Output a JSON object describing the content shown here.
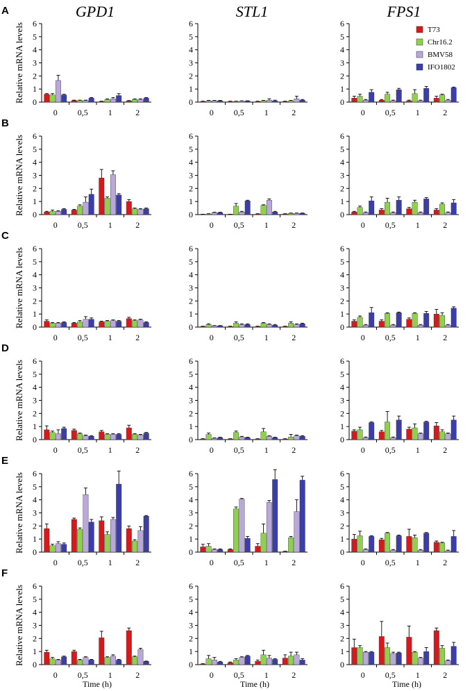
{
  "gene_titles": [
    "GPD1",
    "STL1",
    "FPS1"
  ],
  "row_labels": [
    "A",
    "B",
    "C",
    "D",
    "E",
    "F"
  ],
  "colors": {
    "T73": "#d7191c",
    "Chr16.2": "#8fd14f",
    "BMV58": "#b8a9d9",
    "IFO1802": "#3b3ea8"
  },
  "chart_data": {
    "type": "bar",
    "categories": [
      "0",
      "0,5",
      "1",
      "2"
    ],
    "series_names": [
      "T73",
      "Chr16.2",
      "BMV58",
      "IFO1802"
    ],
    "ylabel": "Relative mRNA levels",
    "xlabel": "Time (h)",
    "ylim": [
      0,
      6
    ],
    "yticks": [
      "0",
      "1",
      "2",
      "3",
      "4",
      "5",
      "6"
    ],
    "legend": {
      "entries": [
        "T73",
        "Chr16.2",
        "BMV58",
        "IFO1802"
      ],
      "placement": "top-right"
    },
    "panels": [
      {
        "row": "A",
        "gene": "GPD1",
        "values": [
          [
            0.6,
            0.55,
            1.65,
            0.55
          ],
          [
            0.12,
            0.12,
            0.12,
            0.3
          ],
          [
            0.05,
            0.2,
            0.25,
            0.5
          ],
          [
            0.1,
            0.2,
            0.2,
            0.3
          ]
        ],
        "errors": [
          [
            0.05,
            0.1,
            0.4,
            0.05
          ],
          [
            0.03,
            0.03,
            0.03,
            0.05
          ],
          [
            0.02,
            0.05,
            0.1,
            0.15
          ],
          [
            0.02,
            0.05,
            0.05,
            0.05
          ]
        ]
      },
      {
        "row": "A",
        "gene": "STL1",
        "values": [
          [
            0.05,
            0.1,
            0.1,
            0.1
          ],
          [
            0.05,
            0.05,
            0.08,
            0.08
          ],
          [
            0.05,
            0.1,
            0.15,
            0.1
          ],
          [
            0.05,
            0.1,
            0.25,
            0.15
          ]
        ],
        "errors": [
          [
            0.02,
            0.03,
            0.03,
            0.03
          ],
          [
            0.02,
            0.02,
            0.02,
            0.02
          ],
          [
            0.02,
            0.03,
            0.1,
            0.05
          ],
          [
            0.02,
            0.03,
            0.2,
            0.05
          ]
        ]
      },
      {
        "row": "A",
        "gene": "FPS1",
        "values": [
          [
            0.3,
            0.45,
            0.15,
            0.75
          ],
          [
            0.15,
            0.6,
            0.1,
            0.95
          ],
          [
            0.1,
            0.65,
            0.1,
            1.05
          ],
          [
            0.3,
            0.55,
            0.15,
            1.1
          ]
        ],
        "errors": [
          [
            0.15,
            0.15,
            0.05,
            0.2
          ],
          [
            0.05,
            0.15,
            0.05,
            0.1
          ],
          [
            0.05,
            0.3,
            0.05,
            0.15
          ],
          [
            0.15,
            0.05,
            0.05,
            0.05
          ]
        ]
      },
      {
        "row": "B",
        "gene": "GPD1",
        "values": [
          [
            0.2,
            0.25,
            0.25,
            0.4
          ],
          [
            0.35,
            0.65,
            0.95,
            1.55
          ],
          [
            2.8,
            1.25,
            3.05,
            1.5
          ],
          [
            1.0,
            0.45,
            0.4,
            0.45
          ]
        ],
        "errors": [
          [
            0.05,
            0.1,
            0.05,
            0.05
          ],
          [
            0.05,
            0.1,
            0.4,
            0.4
          ],
          [
            0.65,
            0.1,
            0.3,
            0.1
          ],
          [
            0.15,
            0.05,
            0.05,
            0.05
          ]
        ]
      },
      {
        "row": "B",
        "gene": "STL1",
        "values": [
          [
            0.02,
            0.05,
            0.15,
            0.15
          ],
          [
            0.02,
            0.65,
            0.2,
            1.05
          ],
          [
            0.05,
            0.7,
            1.1,
            0.2
          ],
          [
            0.05,
            0.1,
            0.1,
            0.1
          ]
        ],
        "errors": [
          [
            0.01,
            0.02,
            0.03,
            0.03
          ],
          [
            0.01,
            0.2,
            0.05,
            0.05
          ],
          [
            0.02,
            0.05,
            0.1,
            0.05
          ],
          [
            0.02,
            0.02,
            0.02,
            0.02
          ]
        ]
      },
      {
        "row": "B",
        "gene": "FPS1",
        "values": [
          [
            0.2,
            0.55,
            0.15,
            1.05
          ],
          [
            0.35,
            0.95,
            0.15,
            1.1
          ],
          [
            0.45,
            0.95,
            0.15,
            1.2
          ],
          [
            0.35,
            0.8,
            0.15,
            0.9
          ]
        ],
        "errors": [
          [
            0.05,
            0.1,
            0.05,
            0.3
          ],
          [
            0.1,
            0.3,
            0.05,
            0.25
          ],
          [
            0.1,
            0.15,
            0.05,
            0.1
          ],
          [
            0.1,
            0.1,
            0.05,
            0.25
          ]
        ]
      },
      {
        "row": "C",
        "gene": "GPD1",
        "values": [
          [
            0.45,
            0.3,
            0.3,
            0.35
          ],
          [
            0.3,
            0.4,
            0.6,
            0.6
          ],
          [
            0.4,
            0.45,
            0.5,
            0.45
          ],
          [
            0.65,
            0.5,
            0.55,
            0.35
          ]
        ],
        "errors": [
          [
            0.1,
            0.05,
            0.05,
            0.05
          ],
          [
            0.05,
            0.1,
            0.2,
            0.1
          ],
          [
            0.05,
            0.05,
            0.05,
            0.05
          ],
          [
            0.1,
            0.05,
            0.05,
            0.05
          ]
        ]
      },
      {
        "row": "C",
        "gene": "STL1",
        "values": [
          [
            0.05,
            0.2,
            0.1,
            0.1
          ],
          [
            0.05,
            0.3,
            0.2,
            0.2
          ],
          [
            0.05,
            0.3,
            0.2,
            0.15
          ],
          [
            0.05,
            0.3,
            0.2,
            0.25
          ]
        ],
        "errors": [
          [
            0.02,
            0.05,
            0.02,
            0.02
          ],
          [
            0.02,
            0.1,
            0.05,
            0.05
          ],
          [
            0.02,
            0.05,
            0.05,
            0.05
          ],
          [
            0.02,
            0.1,
            0.05,
            0.05
          ]
        ]
      },
      {
        "row": "C",
        "gene": "FPS1",
        "values": [
          [
            0.45,
            0.75,
            0.15,
            1.1
          ],
          [
            0.45,
            1.05,
            0.15,
            1.1
          ],
          [
            0.6,
            1.05,
            0.15,
            1.05
          ],
          [
            1.0,
            0.9,
            0.15,
            1.45
          ]
        ],
        "errors": [
          [
            0.1,
            0.1,
            0.05,
            0.4
          ],
          [
            0.1,
            0.05,
            0.05,
            0.05
          ],
          [
            0.1,
            0.05,
            0.05,
            0.15
          ],
          [
            0.35,
            0.2,
            0.05,
            0.1
          ]
        ]
      },
      {
        "row": "D",
        "gene": "GPD1",
        "values": [
          [
            0.75,
            0.55,
            0.45,
            0.85
          ],
          [
            0.7,
            0.45,
            0.3,
            0.25
          ],
          [
            0.6,
            0.4,
            0.4,
            0.4
          ],
          [
            0.9,
            0.4,
            0.35,
            0.5
          ]
        ],
        "errors": [
          [
            0.3,
            0.1,
            0.3,
            0.1
          ],
          [
            0.1,
            0.05,
            0.05,
            0.05
          ],
          [
            0.1,
            0.05,
            0.05,
            0.05
          ],
          [
            0.2,
            0.05,
            0.05,
            0.05
          ]
        ]
      },
      {
        "row": "D",
        "gene": "STL1",
        "values": [
          [
            0.05,
            0.4,
            0.1,
            0.15
          ],
          [
            0.05,
            0.55,
            0.2,
            0.15
          ],
          [
            0.05,
            0.6,
            0.25,
            0.15
          ],
          [
            0.05,
            0.2,
            0.3,
            0.25
          ]
        ],
        "errors": [
          [
            0.02,
            0.1,
            0.03,
            0.03
          ],
          [
            0.02,
            0.1,
            0.05,
            0.03
          ],
          [
            0.02,
            0.25,
            0.05,
            0.03
          ],
          [
            0.02,
            0.2,
            0.05,
            0.05
          ]
        ]
      },
      {
        "row": "D",
        "gene": "FPS1",
        "values": [
          [
            0.65,
            0.75,
            0.15,
            1.3
          ],
          [
            0.6,
            1.35,
            0.15,
            1.5
          ],
          [
            0.8,
            0.9,
            0.45,
            1.35
          ],
          [
            1.05,
            0.6,
            0.45,
            1.5
          ]
        ],
        "errors": [
          [
            0.1,
            0.2,
            0.05,
            0.05
          ],
          [
            0.1,
            0.8,
            0.05,
            0.3
          ],
          [
            0.15,
            0.3,
            0.05,
            0.05
          ],
          [
            0.25,
            0.15,
            0.05,
            0.3
          ]
        ]
      },
      {
        "row": "E",
        "gene": "GPD1",
        "values": [
          [
            1.8,
            0.5,
            0.65,
            0.6
          ],
          [
            2.5,
            1.75,
            4.4,
            2.3
          ],
          [
            2.4,
            1.35,
            2.5,
            5.2
          ],
          [
            1.8,
            0.85,
            1.65,
            2.75
          ]
        ],
        "errors": [
          [
            0.35,
            0.1,
            0.15,
            0.1
          ],
          [
            0.1,
            0.1,
            0.5,
            0.2
          ],
          [
            0.3,
            0.2,
            0.15,
            1.0
          ],
          [
            0.2,
            0.1,
            0.3,
            0.05
          ]
        ]
      },
      {
        "row": "E",
        "gene": "STL1",
        "values": [
          [
            0.4,
            0.45,
            0.2,
            0.2
          ],
          [
            0.2,
            3.3,
            4.05,
            1.05
          ],
          [
            0.45,
            1.45,
            3.8,
            5.55
          ],
          [
            0.05,
            1.1,
            3.1,
            5.5
          ]
        ],
        "errors": [
          [
            0.2,
            0.2,
            0.05,
            0.05
          ],
          [
            0.05,
            0.15,
            0.05,
            0.15
          ],
          [
            0.2,
            0.7,
            0.15,
            0.75
          ],
          [
            0.02,
            0.1,
            0.9,
            0.3
          ]
        ]
      },
      {
        "row": "E",
        "gene": "FPS1",
        "values": [
          [
            1.0,
            1.25,
            0.2,
            1.2
          ],
          [
            0.95,
            1.45,
            0.15,
            1.25
          ],
          [
            1.2,
            1.1,
            0.15,
            1.45
          ],
          [
            0.75,
            0.7,
            0.1,
            1.2
          ]
        ],
        "errors": [
          [
            0.35,
            0.35,
            0.05,
            0.05
          ],
          [
            0.1,
            0.05,
            0.05,
            0.05
          ],
          [
            0.55,
            0.2,
            0.05,
            0.05
          ],
          [
            0.1,
            0.05,
            0.05,
            0.45
          ]
        ]
      },
      {
        "row": "F",
        "gene": "GPD1",
        "values": [
          [
            0.95,
            0.45,
            0.35,
            0.6
          ],
          [
            1.0,
            0.35,
            0.55,
            0.35
          ],
          [
            2.05,
            0.55,
            0.65,
            0.35
          ],
          [
            2.6,
            0.6,
            1.15,
            0.25
          ]
        ],
        "errors": [
          [
            0.15,
            0.1,
            0.05,
            0.05
          ],
          [
            0.1,
            0.05,
            0.05,
            0.05
          ],
          [
            0.5,
            0.05,
            0.1,
            0.05
          ],
          [
            0.2,
            0.05,
            0.1,
            0.02
          ]
        ]
      },
      {
        "row": "F",
        "gene": "STL1",
        "values": [
          [
            0.05,
            0.45,
            0.35,
            0.2
          ],
          [
            0.15,
            0.35,
            0.55,
            0.65
          ],
          [
            0.25,
            0.75,
            0.5,
            0.4
          ],
          [
            0.5,
            0.65,
            0.75,
            0.35
          ]
        ],
        "errors": [
          [
            0.02,
            0.25,
            0.2,
            0.05
          ],
          [
            0.05,
            0.1,
            0.05,
            0.05
          ],
          [
            0.1,
            0.35,
            0.2,
            0.05
          ],
          [
            0.25,
            0.3,
            0.2,
            0.1
          ]
        ]
      },
      {
        "row": "F",
        "gene": "FPS1",
        "values": [
          [
            1.3,
            1.3,
            0.95,
            0.95
          ],
          [
            2.15,
            1.3,
            0.85,
            0.9
          ],
          [
            2.1,
            0.95,
            0.5,
            1.0
          ],
          [
            2.6,
            1.25,
            0.3,
            1.4
          ]
        ],
        "errors": [
          [
            0.65,
            0.15,
            0.05,
            0.05
          ],
          [
            1.15,
            0.35,
            0.1,
            0.05
          ],
          [
            0.85,
            0.05,
            0.05,
            0.3
          ],
          [
            0.2,
            0.2,
            0.05,
            0.3
          ]
        ]
      }
    ]
  }
}
